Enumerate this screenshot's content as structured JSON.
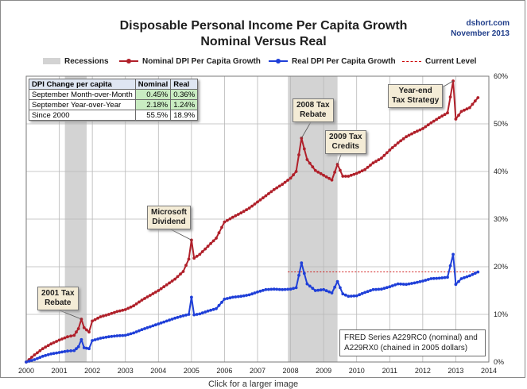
{
  "header": {
    "title_line1": "Disposable Personal Income Per Capita Growth",
    "title_line2": "Nominal Versus Real",
    "source_line1": "dshort.com",
    "source_line2": "November 2013"
  },
  "legend": {
    "recessions": "Recessions",
    "nominal": "Nominal DPI Per Capita Growth",
    "real": "Real DPI Per Capita Growth",
    "current": "Current Level"
  },
  "table": {
    "headers": [
      "DPI Change per capita",
      "Nominal",
      "Real"
    ],
    "rows": [
      {
        "label": "September Month-over-Month",
        "nominal": "0.45%",
        "real": "0.36%"
      },
      {
        "label": "September Year-over-Year",
        "nominal": "2.18%",
        "real": "1.24%"
      },
      {
        "label": "Since 2000",
        "nominal": "55.5%",
        "real": "18.9%"
      }
    ]
  },
  "callouts": {
    "tax2001": [
      "2001 Tax",
      "Rebate"
    ],
    "microsoft": [
      "Microsoft",
      "Dividend"
    ],
    "tax2008": [
      "2008 Tax",
      "Rebate"
    ],
    "tax2009": [
      "2009 Tax",
      "Credits"
    ],
    "yearend": [
      "Year-end",
      "Tax Strategy"
    ]
  },
  "note": {
    "line1": "FRED Series A229RC0 (nominal) and",
    "line2": "A229RX0 (chained in 2005 dollars)"
  },
  "below_text": "Click for a larger image",
  "colors": {
    "nominal": "#b0202a",
    "real": "#1f3fd8",
    "recession": "#d3d3d3",
    "current": "#cc0000",
    "grid": "#b8b8b8"
  },
  "chart_data": {
    "type": "line",
    "title": "Disposable Personal Income Per Capita Growth",
    "subtitle": "Nominal Versus Real",
    "xlim": [
      2000,
      2014
    ],
    "ylim": [
      0,
      60
    ],
    "x_ticks": [
      2000,
      2001,
      2002,
      2003,
      2004,
      2005,
      2006,
      2007,
      2008,
      2009,
      2010,
      2011,
      2012,
      2013,
      2014
    ],
    "y_ticks": [
      "0%",
      "10%",
      "20%",
      "30%",
      "40%",
      "50%",
      "60%"
    ],
    "y_axis_side": "right",
    "grid": true,
    "recessions": [
      [
        2001.17,
        2001.83
      ],
      [
        2007.92,
        2009.42
      ]
    ],
    "current_level": {
      "value": 18.9,
      "from": 2007.92,
      "to": 2013.67
    },
    "series": [
      {
        "name": "Nominal DPI Per Capita Growth",
        "points": [
          [
            2000.0,
            0.0
          ],
          [
            2000.25,
            1.5
          ],
          [
            2000.5,
            2.8
          ],
          [
            2000.75,
            3.8
          ],
          [
            2001.0,
            4.6
          ],
          [
            2001.25,
            5.3
          ],
          [
            2001.45,
            5.6
          ],
          [
            2001.58,
            7.0
          ],
          [
            2001.67,
            9.0
          ],
          [
            2001.75,
            7.2
          ],
          [
            2001.9,
            6.3
          ],
          [
            2002.0,
            8.6
          ],
          [
            2002.25,
            9.5
          ],
          [
            2002.5,
            10.0
          ],
          [
            2002.75,
            10.6
          ],
          [
            2003.0,
            11.0
          ],
          [
            2003.25,
            11.8
          ],
          [
            2003.5,
            13.0
          ],
          [
            2003.75,
            14.0
          ],
          [
            2004.0,
            15.0
          ],
          [
            2004.25,
            16.2
          ],
          [
            2004.5,
            17.4
          ],
          [
            2004.75,
            19.0
          ],
          [
            2004.92,
            21.6
          ],
          [
            2005.0,
            25.6
          ],
          [
            2005.08,
            21.8
          ],
          [
            2005.25,
            22.6
          ],
          [
            2005.5,
            24.3
          ],
          [
            2005.75,
            26.0
          ],
          [
            2006.0,
            29.4
          ],
          [
            2006.25,
            30.4
          ],
          [
            2006.5,
            31.3
          ],
          [
            2006.75,
            32.3
          ],
          [
            2007.0,
            33.6
          ],
          [
            2007.25,
            34.9
          ],
          [
            2007.5,
            36.2
          ],
          [
            2007.75,
            37.3
          ],
          [
            2008.0,
            38.6
          ],
          [
            2008.17,
            40.0
          ],
          [
            2008.33,
            47.0
          ],
          [
            2008.5,
            42.5
          ],
          [
            2008.75,
            40.2
          ],
          [
            2009.0,
            39.2
          ],
          [
            2009.25,
            38.2
          ],
          [
            2009.42,
            41.5
          ],
          [
            2009.58,
            39.0
          ],
          [
            2009.75,
            39.0
          ],
          [
            2010.0,
            39.6
          ],
          [
            2010.25,
            40.4
          ],
          [
            2010.5,
            41.8
          ],
          [
            2010.75,
            42.8
          ],
          [
            2011.0,
            44.5
          ],
          [
            2011.25,
            46.0
          ],
          [
            2011.5,
            47.3
          ],
          [
            2011.75,
            48.2
          ],
          [
            2012.0,
            49.0
          ],
          [
            2012.25,
            50.2
          ],
          [
            2012.5,
            51.3
          ],
          [
            2012.75,
            52.3
          ],
          [
            2012.92,
            59.0
          ],
          [
            2013.0,
            51.0
          ],
          [
            2013.17,
            52.6
          ],
          [
            2013.42,
            53.4
          ],
          [
            2013.67,
            55.5
          ]
        ]
      },
      {
        "name": "Real DPI Per Capita Growth",
        "points": [
          [
            2000.0,
            0.0
          ],
          [
            2000.25,
            0.5
          ],
          [
            2000.5,
            1.2
          ],
          [
            2000.75,
            1.7
          ],
          [
            2001.0,
            2.0
          ],
          [
            2001.25,
            2.3
          ],
          [
            2001.45,
            2.4
          ],
          [
            2001.58,
            3.2
          ],
          [
            2001.67,
            4.7
          ],
          [
            2001.75,
            3.0
          ],
          [
            2001.9,
            2.8
          ],
          [
            2002.0,
            4.5
          ],
          [
            2002.25,
            5.0
          ],
          [
            2002.5,
            5.3
          ],
          [
            2002.75,
            5.5
          ],
          [
            2003.0,
            5.6
          ],
          [
            2003.25,
            6.1
          ],
          [
            2003.5,
            6.8
          ],
          [
            2003.75,
            7.4
          ],
          [
            2004.0,
            8.0
          ],
          [
            2004.25,
            8.6
          ],
          [
            2004.5,
            9.2
          ],
          [
            2004.75,
            9.7
          ],
          [
            2004.92,
            10.0
          ],
          [
            2005.0,
            13.6
          ],
          [
            2005.08,
            9.9
          ],
          [
            2005.25,
            10.1
          ],
          [
            2005.5,
            10.7
          ],
          [
            2005.75,
            11.2
          ],
          [
            2006.0,
            13.2
          ],
          [
            2006.25,
            13.6
          ],
          [
            2006.5,
            13.8
          ],
          [
            2006.75,
            14.1
          ],
          [
            2007.0,
            14.7
          ],
          [
            2007.25,
            15.2
          ],
          [
            2007.5,
            15.3
          ],
          [
            2007.75,
            15.2
          ],
          [
            2008.0,
            15.3
          ],
          [
            2008.17,
            15.6
          ],
          [
            2008.33,
            20.8
          ],
          [
            2008.5,
            16.4
          ],
          [
            2008.75,
            15.0
          ],
          [
            2009.0,
            15.2
          ],
          [
            2009.25,
            14.5
          ],
          [
            2009.42,
            16.9
          ],
          [
            2009.58,
            14.3
          ],
          [
            2009.75,
            13.8
          ],
          [
            2010.0,
            13.9
          ],
          [
            2010.25,
            14.6
          ],
          [
            2010.5,
            15.2
          ],
          [
            2010.75,
            15.3
          ],
          [
            2011.0,
            15.8
          ],
          [
            2011.25,
            16.4
          ],
          [
            2011.5,
            16.3
          ],
          [
            2011.75,
            16.6
          ],
          [
            2012.0,
            17.0
          ],
          [
            2012.25,
            17.5
          ],
          [
            2012.5,
            17.6
          ],
          [
            2012.75,
            17.8
          ],
          [
            2012.92,
            22.6
          ],
          [
            2013.0,
            16.3
          ],
          [
            2013.17,
            17.5
          ],
          [
            2013.42,
            18.1
          ],
          [
            2013.67,
            18.9
          ]
        ]
      }
    ]
  }
}
